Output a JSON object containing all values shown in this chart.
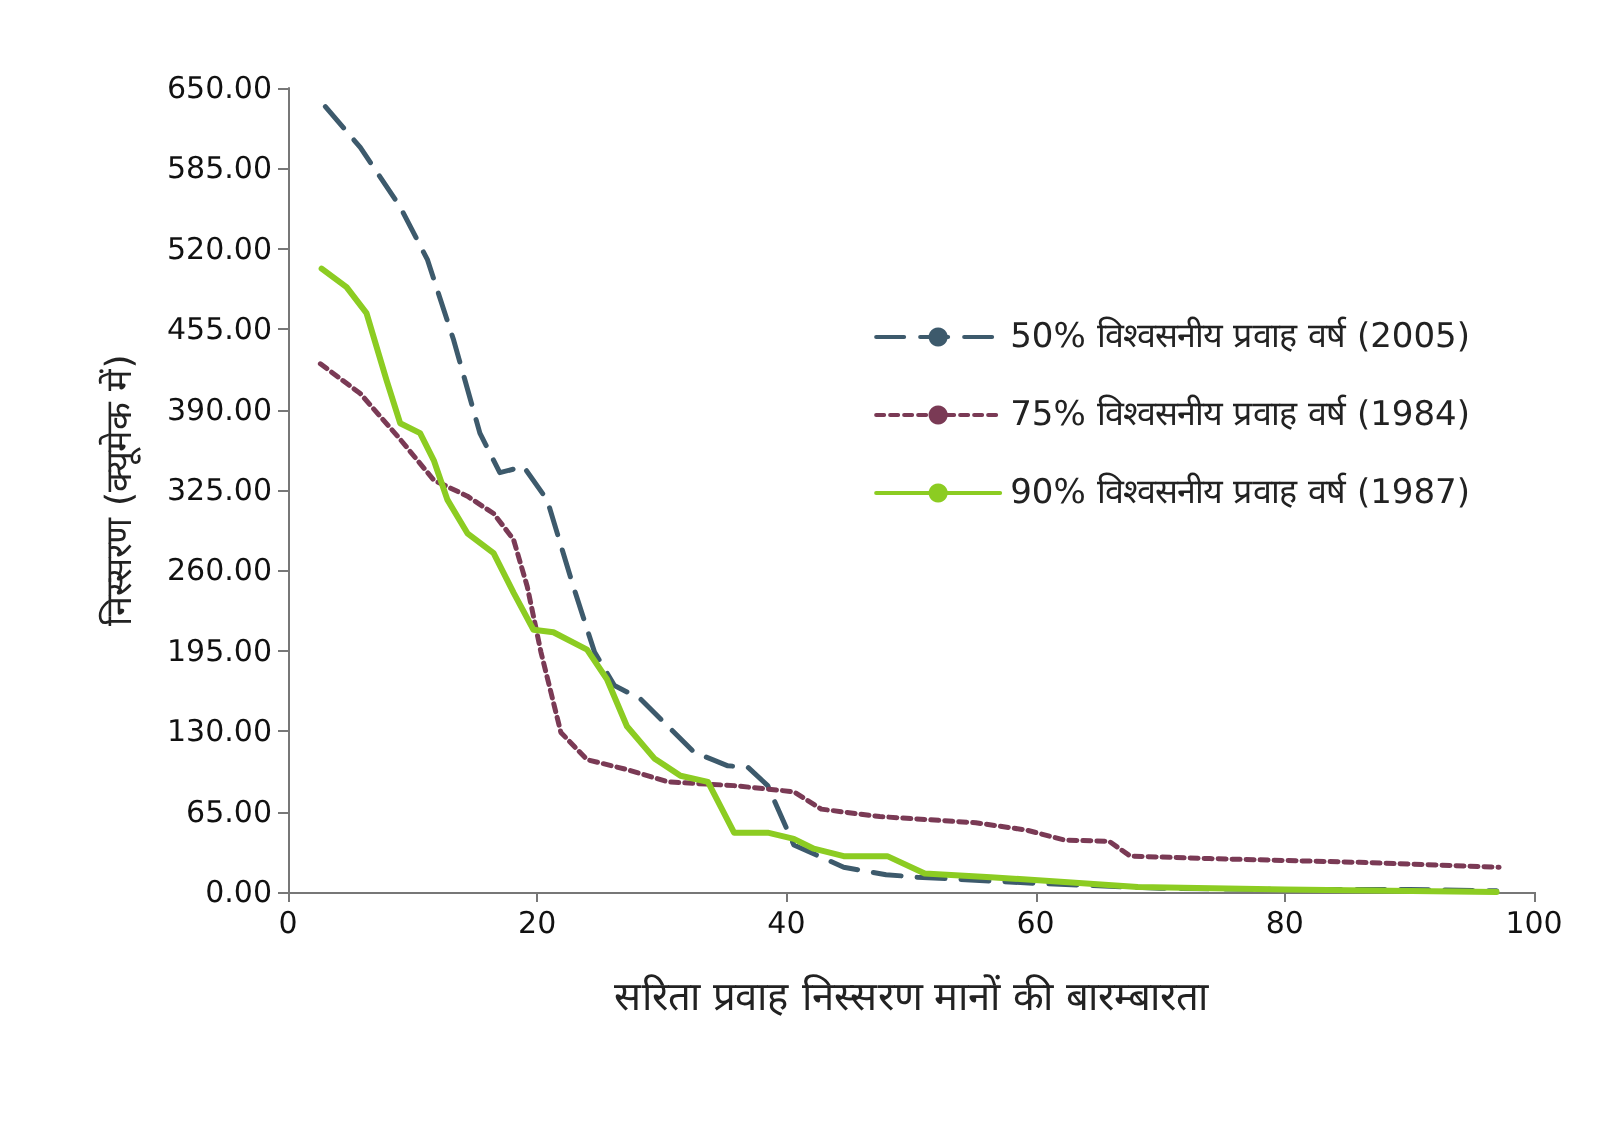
{
  "chart_data": {
    "type": "line",
    "xlabel": "सरिता प्रवाह निस्सरण मानों की बारम्बारता",
    "ylabel": "निस्सरण (क्यूमेक में)",
    "xlim": [
      0,
      100
    ],
    "xticks": [
      0,
      20,
      40,
      60,
      80,
      100
    ],
    "ylim": [
      0,
      650
    ],
    "yticks": [
      {
        "value": 0,
        "label": "0.00"
      },
      {
        "value": 65,
        "label": "65.00"
      },
      {
        "value": 130,
        "label": "130.00"
      },
      {
        "value": 195,
        "label": "195.00"
      },
      {
        "value": 260,
        "label": "260.00"
      },
      {
        "value": 325,
        "label": "325.00"
      },
      {
        "value": 390,
        "label": "390.00"
      },
      {
        "value": 455,
        "label": "455.00"
      },
      {
        "value": 520,
        "label": "520.00"
      },
      {
        "value": 585,
        "label": "585.00"
      },
      {
        "value": 650,
        "label": "650.00"
      }
    ],
    "grid": false,
    "legend": "right",
    "marker": "none",
    "series": [
      {
        "name": "50% विश्वसनीय प्रवाह वर्ष (2005)",
        "color": "#3d5a6c",
        "line_style": "dashed",
        "x": [
          3,
          5.8,
          9,
          11.2,
          13.3,
          15.4,
          17,
          18.9,
          20.8,
          22.9,
          24.6,
          26.2,
          28.3,
          30.5,
          32.6,
          35.3,
          36.9,
          38.5,
          40.6,
          44.6,
          48,
          50.5,
          60,
          70,
          80,
          90,
          97
        ],
        "values": [
          635,
          602,
          554,
          511,
          446,
          371,
          339,
          344,
          317,
          247,
          194,
          167,
          156,
          134,
          113,
          102,
          101,
          86,
          38,
          20,
          14,
          12,
          7,
          3,
          2,
          2,
          1
        ]
      },
      {
        "name": "75% विश्वसनीय प्रवाह वर्ष (1984)",
        "color": "#7a3a55",
        "line_style": "dotted",
        "x": [
          2.6,
          5.8,
          9,
          11.7,
          14.4,
          16.5,
          18.1,
          19.2,
          20.3,
          21.9,
          24,
          27.2,
          30.5,
          35.8,
          40.6,
          42.8,
          47.5,
          55.2,
          59.3,
          62.3,
          65.9,
          67.6,
          74,
          86,
          97.2
        ],
        "values": [
          427,
          403,
          366,
          333,
          320,
          306,
          285,
          247,
          194,
          129,
          107,
          99,
          89,
          86,
          81,
          67,
          61,
          56,
          50,
          42,
          41,
          29,
          27,
          24,
          20
        ]
      },
      {
        "name": "90% विश्वसनीय प्रवाह वर्ष (1987)",
        "color": "#8ccc22",
        "line_style": "solid",
        "x": [
          2.7,
          4.7,
          6.3,
          7.9,
          9,
          10.6,
          11.7,
          12.8,
          14.4,
          16.5,
          18.1,
          19.7,
          21.3,
          24,
          25.6,
          27.2,
          29.4,
          31.5,
          33.7,
          35.8,
          38.5,
          40.6,
          42.2,
          44.6,
          48.1,
          51.1,
          56.4,
          62.3,
          68.2,
          80,
          97
        ],
        "values": [
          504,
          489,
          468,
          414,
          379,
          371,
          349,
          317,
          290,
          274,
          242,
          212,
          210,
          196,
          172,
          134,
          108,
          94,
          89,
          48,
          48,
          43,
          35,
          29,
          29,
          15,
          12,
          8,
          4,
          2,
          0
        ]
      }
    ]
  }
}
